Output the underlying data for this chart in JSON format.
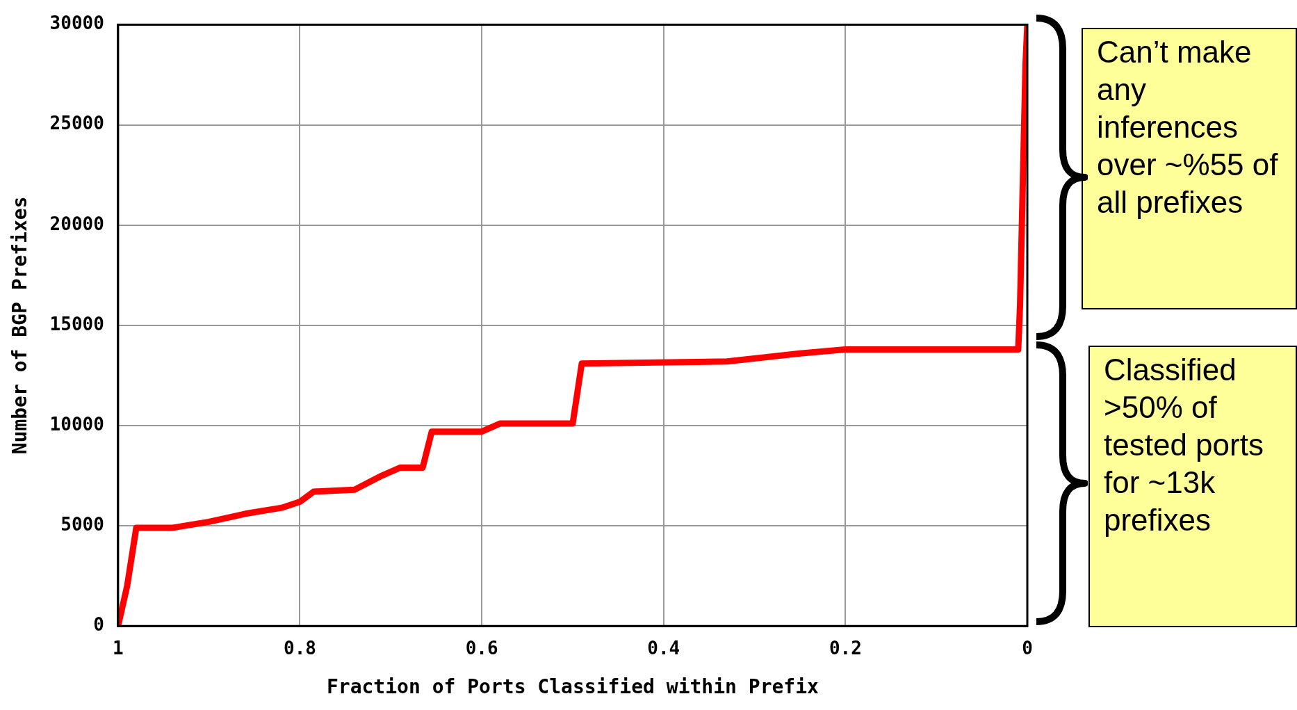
{
  "chart_data": {
    "type": "line",
    "xlabel": "Fraction of Ports Classified within Prefix",
    "ylabel": "Number of BGP Prefixes",
    "x": [
      1.0,
      0.99,
      0.98,
      0.94,
      0.9,
      0.86,
      0.82,
      0.8,
      0.785,
      0.74,
      0.71,
      0.69,
      0.665,
      0.655,
      0.6,
      0.58,
      0.5,
      0.49,
      0.33,
      0.25,
      0.2,
      0.01,
      0.008,
      0.006,
      0.004,
      0.002,
      0.0
    ],
    "series": [
      {
        "color": "#ff0000",
        "values": [
          0,
          2000,
          4900,
          4900,
          5200,
          5600,
          5900,
          6200,
          6700,
          6800,
          7500,
          7900,
          7900,
          9700,
          9700,
          10100,
          10100,
          13100,
          13200,
          13600,
          13800,
          13800,
          16000,
          20000,
          24000,
          28000,
          30000
        ]
      }
    ],
    "xlim": [
      1,
      0
    ],
    "xticks": [
      1,
      0.8,
      0.6,
      0.4,
      0.2,
      0
    ],
    "ylim": [
      0,
      30000
    ],
    "yticks": [
      0,
      5000,
      10000,
      15000,
      20000,
      25000,
      30000
    ],
    "grid": true,
    "legend": false,
    "marker": "none",
    "line_style": "solid",
    "annotations": [
      "Can’t make any inferences over ~%55 of all prefixes",
      "Classified >50% of tested ports for ~13k prefixes"
    ]
  }
}
